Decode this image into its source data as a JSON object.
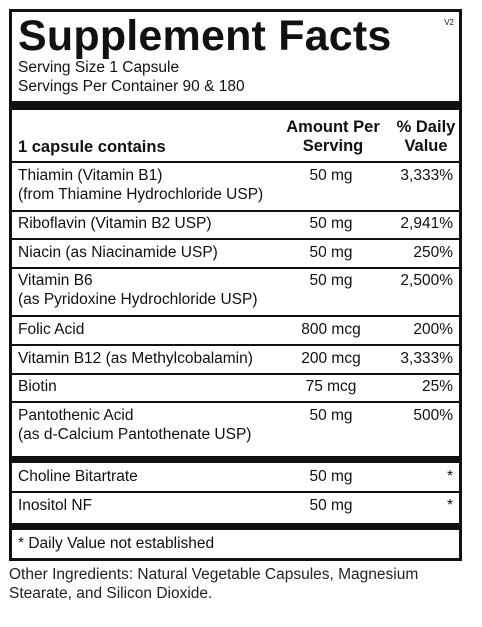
{
  "title": "Supplement Facts",
  "version": "V2",
  "serving_size": "Serving Size 1 Capsule",
  "servings_per_container": "Servings Per Container 90 & 180",
  "header": {
    "contains": "1 capsule contains",
    "amount_line1": "Amount Per",
    "amount_line2": "Serving",
    "dv_line1": "% Daily",
    "dv_line2": "Value"
  },
  "rows": [
    {
      "name": "Thiamin (Vitamin B1)",
      "sub": "(from Thiamine Hydrochloride USP)",
      "amount": "50 mg",
      "dv": "3,333%"
    },
    {
      "name": "Riboflavin (Vitamin B2 USP)",
      "amount": "50 mg",
      "dv": "2,941%"
    },
    {
      "name": "Niacin (as Niacinamide USP)",
      "amount": "50 mg",
      "dv": "250%"
    },
    {
      "name": "Vitamin B6",
      "sub": "(as Pyridoxine Hydrochloride USP)",
      "amount": "50 mg",
      "dv": "2,500%"
    },
    {
      "name": "Folic Acid",
      "amount": "800 mcg",
      "dv": "200%"
    },
    {
      "name": "Vitamin B12 (as Methylcobalamin)",
      "amount": "200 mcg",
      "dv": "3,333%"
    },
    {
      "name": "Biotin",
      "amount": "75 mcg",
      "dv": "25%"
    },
    {
      "name": "Pantothenic Acid",
      "sub": "(as d-Calcium Pantothenate USP)",
      "amount": "50 mg",
      "dv": "500%"
    },
    {
      "name": "Choline Bitartrate",
      "amount": "50 mg",
      "dv": "*"
    },
    {
      "name": "Inositol NF",
      "amount": "50 mg",
      "dv": "*"
    }
  ],
  "footnote": "* Daily Value not established",
  "other_ingredients": "Other Ingredients: Natural Vegetable Capsules, Magnesium Stearate, and Silicon Dioxide."
}
